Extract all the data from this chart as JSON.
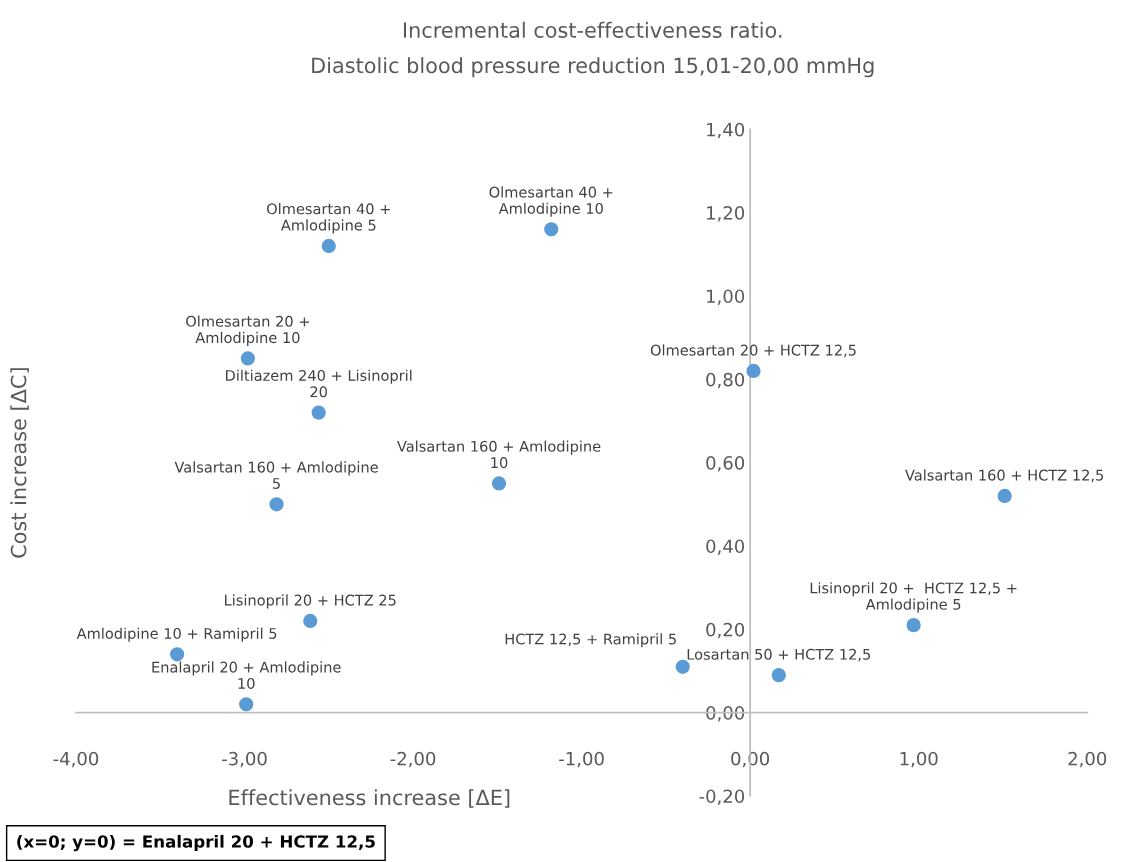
{
  "chart_data": {
    "type": "scatter",
    "title": "Incremental cost-effectiveness ratio.",
    "subtitle": "Diastolic blood pressure reduction 15,01-20,00 mmHg",
    "xlabel": "Effectiveness increase [ΔE]",
    "ylabel": "Cost increase [ΔC]",
    "x": [
      -2.5,
      -1.18,
      -2.98,
      -2.56,
      -2.81,
      -1.49,
      0.02,
      1.51,
      0.97,
      0.17,
      -0.4,
      -2.61,
      -3.4,
      -2.99
    ],
    "series": [
      {
        "color": "#5b9bd5",
        "values": [
          1.12,
          1.16,
          0.85,
          0.72,
          0.5,
          0.55,
          0.82,
          0.52,
          0.21,
          0.09,
          0.11,
          0.22,
          0.14,
          0.02
        ]
      }
    ],
    "xlim": [
      -4,
      2
    ],
    "xticks": [
      {
        "value": -4,
        "label": "-4,00"
      },
      {
        "value": -3,
        "label": "-3,00"
      },
      {
        "value": -2,
        "label": "-2,00"
      },
      {
        "value": -1,
        "label": "-1,00"
      },
      {
        "value": 0,
        "label": "0,00"
      },
      {
        "value": 1,
        "label": "1,00"
      },
      {
        "value": 2,
        "label": "2,00"
      }
    ],
    "ylim": [
      -0.2,
      1.4
    ],
    "yticks": [
      {
        "value": -0.2,
        "label": "-0,20"
      },
      {
        "value": 0,
        "label": "0,00"
      },
      {
        "value": 0.2,
        "label": "0,20"
      },
      {
        "value": 0.4,
        "label": "0,40"
      },
      {
        "value": 0.6,
        "label": "0,60"
      },
      {
        "value": 0.8,
        "label": "0,80"
      },
      {
        "value": 1.0,
        "label": "1,00"
      },
      {
        "value": 1.2,
        "label": "1,20"
      },
      {
        "value": 1.4,
        "label": "1,40"
      }
    ],
    "marker": "circle",
    "grid": false,
    "legend": false,
    "annotations": [
      {
        "text": "Olmesartan 40 +\nAmlodipine 5",
        "x": -2.5,
        "y": 1.12
      },
      {
        "text": "Olmesartan 40 +\nAmlodipine 10",
        "x": -1.18,
        "y": 1.16
      },
      {
        "text": "Olmesartan 20 +\nAmlodipine 10",
        "x": -2.98,
        "y": 0.85
      },
      {
        "text": "Diltiazem 240 + Lisinopril\n20",
        "x": -2.56,
        "y": 0.72
      },
      {
        "text": "Valsartan 160 + Amlodipine\n5",
        "x": -2.81,
        "y": 0.5
      },
      {
        "text": "Valsartan 160 + Amlodipine\n10",
        "x": -1.49,
        "y": 0.55
      },
      {
        "text": "Olmesartan 20 + HCTZ 12,5",
        "x": 0.02,
        "y": 0.82
      },
      {
        "text": "Valsartan 160 + HCTZ 12,5",
        "x": 1.51,
        "y": 0.52
      },
      {
        "text": "Lisinopril 20 +  HCTZ 12,5 +\nAmlodipine 5",
        "x": 0.97,
        "y": 0.21
      },
      {
        "text": "Losartan 50 + HCTZ 12,5",
        "x": 0.17,
        "y": 0.09
      },
      {
        "text": "HCTZ 12,5 + Ramipril 5",
        "x": -0.4,
        "y": 0.11
      },
      {
        "text": "Lisinopril 20 + HCTZ 25",
        "x": -2.61,
        "y": 0.22
      },
      {
        "text": "Amlodipine 10 + Ramipril 5",
        "x": -3.4,
        "y": 0.14
      },
      {
        "text": "Enalapril 20 + Amlodipine\n10",
        "x": -2.99,
        "y": 0.02
      },
      "(x=0; y=0) = Enalapril 20 + HCTZ 12,5"
    ]
  }
}
